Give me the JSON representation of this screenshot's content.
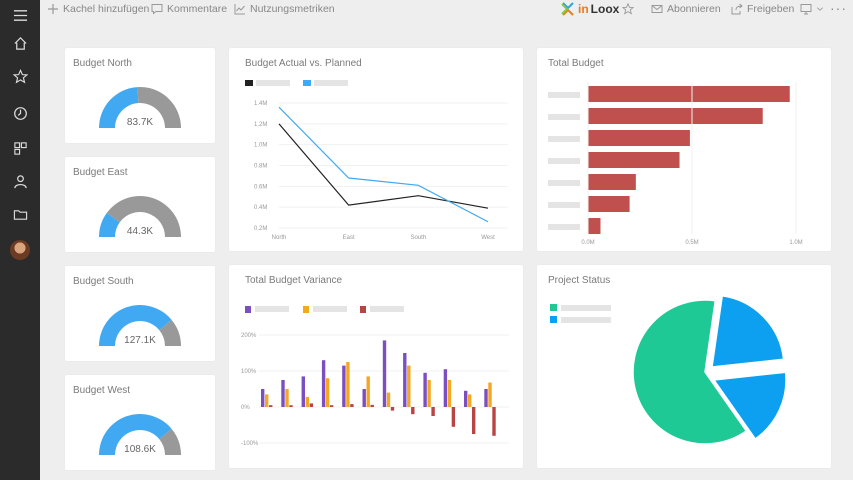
{
  "topbar": {
    "add_tile": "Kachel hinzufügen",
    "comments": "Kommentare",
    "usage_metrics": "Nutzungsmetriken",
    "logo_in": "in",
    "logo_loox": "Loox",
    "subscribe": "Abonnieren",
    "share": "Freigeben"
  },
  "sidebar": {
    "items": [
      "menu-icon",
      "home-icon",
      "star-icon",
      "clock-icon",
      "apps-icon",
      "person-icon",
      "folder-icon"
    ]
  },
  "gauges": [
    {
      "title": "Budget North",
      "value": "83.7K",
      "fraction": 0.48
    },
    {
      "title": "Budget East",
      "value": "44.3K",
      "fraction": 0.2
    },
    {
      "title": "Budget South",
      "value": "127.1K",
      "fraction": 0.78
    },
    {
      "title": "Budget West",
      "value": "108.6K",
      "fraction": 0.78
    }
  ],
  "colors": {
    "gauge_fill": "#41a9f1",
    "gauge_rest": "#999999",
    "actual": "#222222",
    "planned": "#41a9f1",
    "bar": "#c0504d",
    "purple": "#7b4fc0",
    "orange": "#f5a623",
    "darkred": "#b84444",
    "teal": "#1fc995",
    "blue": "#0ea0f0"
  },
  "chart_data": [
    {
      "type": "line",
      "title": "Budget Actual vs. Planned",
      "categories": [
        "North",
        "East",
        "South",
        "West"
      ],
      "series": [
        {
          "values": [
            1.2,
            0.42,
            0.51,
            0.39
          ]
        },
        {
          "values": [
            1.36,
            0.68,
            0.61,
            0.26
          ]
        }
      ],
      "y_ticks": [
        "1.4M",
        "1.2M",
        "1.0M",
        "0.8M",
        "0.6M",
        "0.4M",
        "0.2M"
      ],
      "ylim": [
        0.2,
        1.4
      ]
    },
    {
      "type": "bar",
      "orientation": "horizontal",
      "title": "Total Budget",
      "values": [
        0.97,
        0.84,
        0.49,
        0.44,
        0.23,
        0.2,
        0.06
      ],
      "x_ticks": [
        "0.0M",
        "0.5M",
        "1.0M"
      ],
      "xlim": [
        0,
        1.0
      ]
    },
    {
      "type": "bar",
      "title": "Total Budget Variance",
      "y_ticks": [
        "200%",
        "100%",
        "0%",
        "-100%"
      ],
      "ylim": [
        -100,
        200
      ],
      "groups": [
        [
          50,
          35,
          5
        ],
        [
          75,
          50,
          5
        ],
        [
          85,
          28,
          10
        ],
        [
          130,
          80,
          5
        ],
        [
          115,
          125,
          8
        ],
        [
          50,
          85,
          6
        ],
        [
          185,
          40,
          -10
        ],
        [
          150,
          115,
          -20
        ],
        [
          95,
          75,
          -25
        ],
        [
          105,
          75,
          -55
        ],
        [
          45,
          35,
          -75
        ],
        [
          50,
          68,
          -80
        ]
      ]
    },
    {
      "type": "pie",
      "title": "Project Status",
      "values": [
        0.62,
        0.21,
        0.17
      ]
    }
  ]
}
